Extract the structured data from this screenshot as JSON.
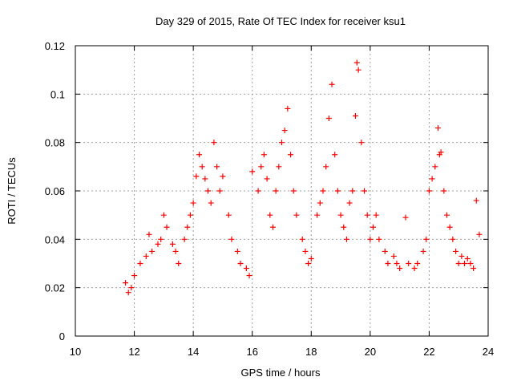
{
  "chart_data": {
    "type": "scatter",
    "title": "Day 329 of 2015, Rate Of TEC Index for receiver ksu1",
    "xlabel": "GPS time / hours",
    "ylabel": "ROTI / TECUs",
    "xlim": [
      10,
      24
    ],
    "ylim": [
      0,
      0.12
    ],
    "x_ticks": [
      10,
      12,
      14,
      16,
      18,
      20,
      22,
      24
    ],
    "x_tick_labels": [
      "10",
      "12",
      "14",
      "16",
      "18",
      "20",
      "22",
      "24"
    ],
    "y_ticks": [
      0,
      0.02,
      0.04,
      0.06,
      0.08,
      0.1,
      0.12
    ],
    "y_tick_labels": [
      "0",
      "0.02",
      "0.04",
      "0.06",
      "0.08",
      "0.1",
      "0.12"
    ],
    "grid": true,
    "marker": "+",
    "series": [
      {
        "name": "ROTI",
        "color": "#ff0000",
        "x": [
          11.7,
          11.8,
          11.9,
          12.0,
          12.2,
          12.4,
          12.5,
          12.6,
          12.8,
          12.9,
          13.0,
          13.1,
          13.3,
          13.4,
          13.5,
          13.7,
          13.8,
          13.9,
          14.0,
          14.1,
          14.2,
          14.3,
          14.4,
          14.5,
          14.6,
          14.7,
          14.8,
          14.9,
          15.0,
          15.2,
          15.3,
          15.5,
          15.6,
          15.8,
          15.9,
          16.0,
          16.2,
          16.3,
          16.4,
          16.5,
          16.6,
          16.7,
          16.8,
          16.9,
          17.0,
          17.1,
          17.2,
          17.3,
          17.4,
          17.5,
          17.7,
          17.8,
          17.9,
          18.0,
          18.2,
          18.3,
          18.4,
          18.5,
          18.6,
          18.7,
          18.8,
          18.9,
          19.0,
          19.1,
          19.2,
          19.3,
          19.4,
          19.5,
          19.55,
          19.6,
          19.7,
          19.8,
          19.9,
          20.0,
          20.1,
          20.2,
          20.3,
          20.5,
          20.6,
          20.8,
          20.9,
          21.0,
          21.2,
          21.3,
          21.5,
          21.6,
          21.8,
          21.9,
          22.0,
          22.1,
          22.2,
          22.3,
          22.35,
          22.4,
          22.5,
          22.6,
          22.7,
          22.8,
          22.9,
          23.0,
          23.1,
          23.2,
          23.3,
          23.4,
          23.5,
          23.6,
          23.7
        ],
        "y": [
          0.022,
          0.018,
          0.02,
          0.025,
          0.03,
          0.033,
          0.042,
          0.035,
          0.038,
          0.04,
          0.05,
          0.045,
          0.038,
          0.035,
          0.03,
          0.04,
          0.045,
          0.05,
          0.055,
          0.066,
          0.075,
          0.07,
          0.065,
          0.06,
          0.055,
          0.08,
          0.07,
          0.06,
          0.066,
          0.05,
          0.04,
          0.035,
          0.03,
          0.028,
          0.025,
          0.068,
          0.06,
          0.07,
          0.075,
          0.065,
          0.05,
          0.045,
          0.06,
          0.07,
          0.08,
          0.085,
          0.094,
          0.075,
          0.06,
          0.05,
          0.04,
          0.035,
          0.03,
          0.032,
          0.05,
          0.055,
          0.06,
          0.07,
          0.09,
          0.104,
          0.075,
          0.06,
          0.05,
          0.045,
          0.04,
          0.055,
          0.06,
          0.091,
          0.113,
          0.11,
          0.08,
          0.06,
          0.05,
          0.04,
          0.045,
          0.05,
          0.04,
          0.035,
          0.03,
          0.033,
          0.03,
          0.028,
          0.049,
          0.03,
          0.028,
          0.03,
          0.035,
          0.04,
          0.06,
          0.065,
          0.07,
          0.086,
          0.075,
          0.076,
          0.06,
          0.05,
          0.045,
          0.04,
          0.035,
          0.03,
          0.033,
          0.03,
          0.032,
          0.03,
          0.028,
          0.056,
          0.042
        ]
      }
    ]
  }
}
